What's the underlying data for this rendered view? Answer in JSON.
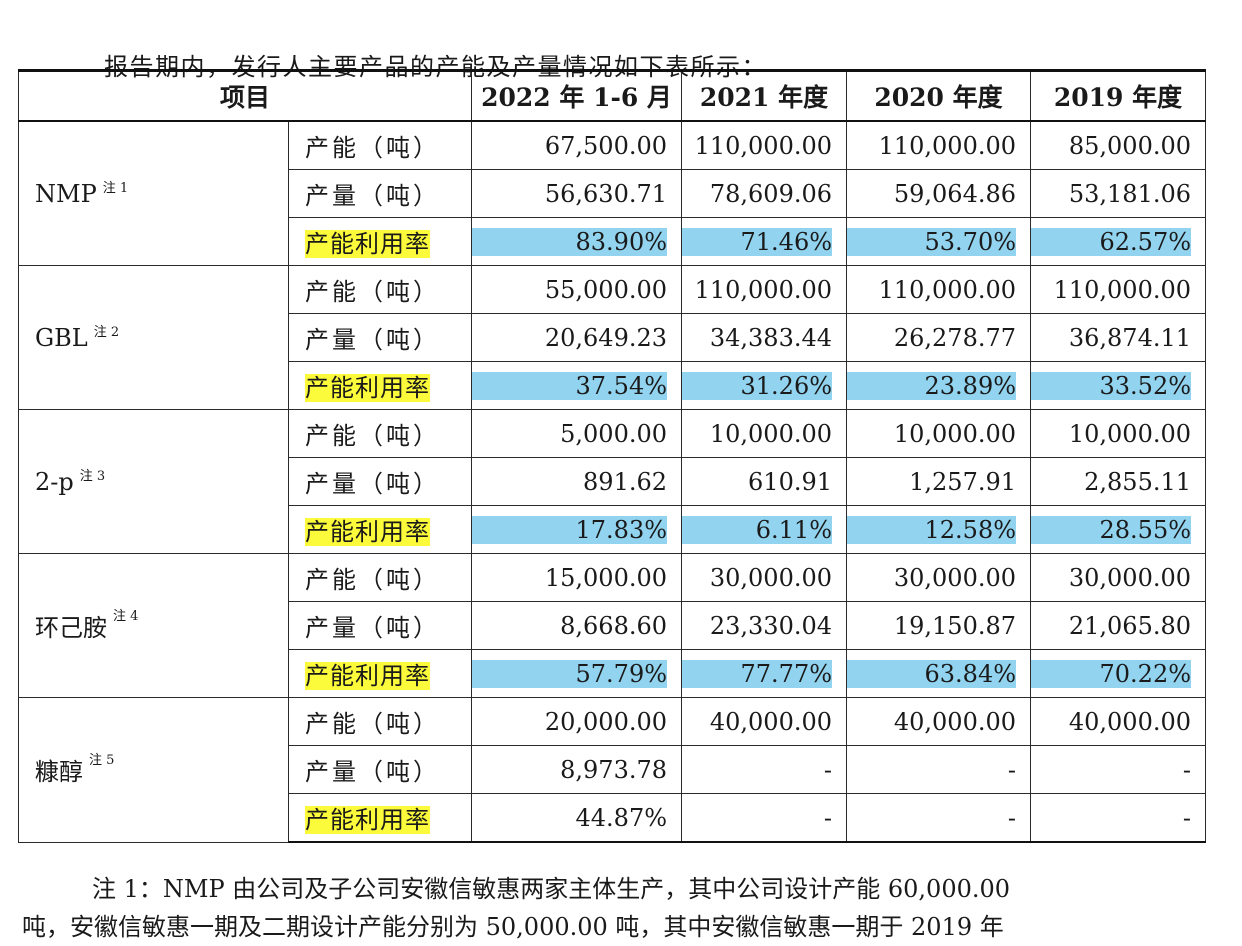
{
  "intro": "报告期内，发行人主要产品的产能及产量情况如下表所示：",
  "table": {
    "headers": [
      "项目",
      "2022 年 1-6 月",
      "2021 年度",
      "2020 年度",
      "2019 年度"
    ],
    "groups": [
      {
        "product": "NMP",
        "note": "注 1",
        "rows": [
          {
            "metric": "产能（吨）",
            "values": [
              "67,500.00",
              "110,000.00",
              "110,000.00",
              "85,000.00"
            ]
          },
          {
            "metric": "产量（吨）",
            "values": [
              "56,630.71",
              "78,609.06",
              "59,064.86",
              "53,181.06"
            ]
          },
          {
            "metric": "产能利用率",
            "values": [
              "83.90%",
              "71.46%",
              "53.70%",
              "62.57%"
            ]
          }
        ]
      },
      {
        "product": "GBL",
        "note": "注 2",
        "rows": [
          {
            "metric": "产能（吨）",
            "values": [
              "55,000.00",
              "110,000.00",
              "110,000.00",
              "110,000.00"
            ]
          },
          {
            "metric": "产量（吨）",
            "values": [
              "20,649.23",
              "34,383.44",
              "26,278.77",
              "36,874.11"
            ]
          },
          {
            "metric": "产能利用率",
            "values": [
              "37.54%",
              "31.26%",
              "23.89%",
              "33.52%"
            ]
          }
        ]
      },
      {
        "product": "2-p",
        "note": "注 3",
        "rows": [
          {
            "metric": "产能（吨）",
            "values": [
              "5,000.00",
              "10,000.00",
              "10,000.00",
              "10,000.00"
            ]
          },
          {
            "metric": "产量（吨）",
            "values": [
              "891.62",
              "610.91",
              "1,257.91",
              "2,855.11"
            ]
          },
          {
            "metric": "产能利用率",
            "values": [
              "17.83%",
              "6.11%",
              "12.58%",
              "28.55%"
            ]
          }
        ]
      },
      {
        "product": "环己胺",
        "note": "注 4",
        "rows": [
          {
            "metric": "产能（吨）",
            "values": [
              "15,000.00",
              "30,000.00",
              "30,000.00",
              "30,000.00"
            ]
          },
          {
            "metric": "产量（吨）",
            "values": [
              "8,668.60",
              "23,330.04",
              "19,150.87",
              "21,065.80"
            ]
          },
          {
            "metric": "产能利用率",
            "values": [
              "57.79%",
              "77.77%",
              "63.84%",
              "70.22%"
            ]
          }
        ]
      },
      {
        "product": "糠醇",
        "note": "注 5",
        "rows": [
          {
            "metric": "产能（吨）",
            "values": [
              "20,000.00",
              "40,000.00",
              "40,000.00",
              "40,000.00"
            ]
          },
          {
            "metric": "产量（吨）",
            "values": [
              "8,973.78",
              "-",
              "-",
              "-"
            ]
          },
          {
            "metric": "产能利用率",
            "values": [
              "44.87%",
              "-",
              "-",
              "-"
            ]
          }
        ]
      }
    ]
  },
  "footnote": {
    "line1": "注 1：NMP 由公司及子公司安徽信敏惠两家主体生产，其中公司设计产能 60,000.00",
    "line2": "吨，安徽信敏惠一期及二期设计产能分别为 50,000.00 吨，其中安徽信敏惠一期于 2019 年"
  },
  "colors": {
    "metric_highlight": "#fbfb3c",
    "rate_highlight": "#92d4f0"
  }
}
